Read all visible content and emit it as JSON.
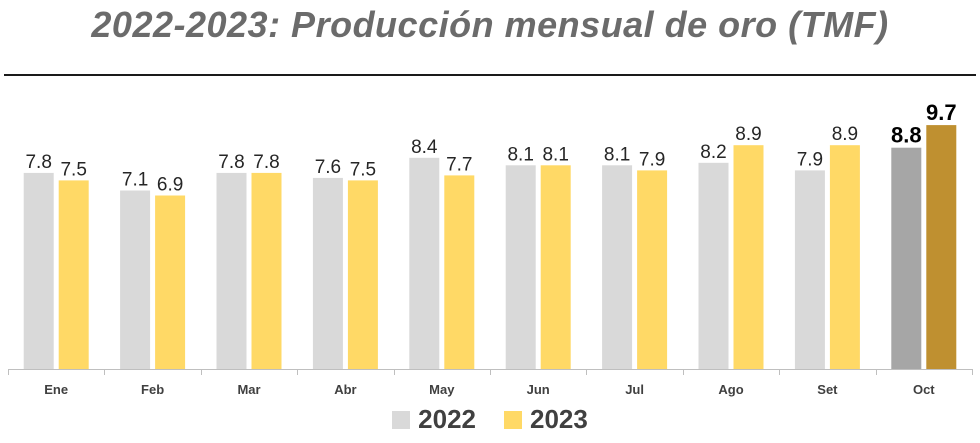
{
  "chart_data": {
    "type": "bar",
    "title": "2022-2023: Producción mensual de oro (TMF)",
    "categories": [
      "Ene",
      "Feb",
      "Mar",
      "Abr",
      "May",
      "Jun",
      "Jul",
      "Ago",
      "Set",
      "Oct"
    ],
    "series": [
      {
        "name": "2022",
        "color": "#d9d9d9",
        "highlight_color": "#a6a6a6",
        "values": [
          7.8,
          7.1,
          7.8,
          7.6,
          8.4,
          8.1,
          8.1,
          8.2,
          7.9,
          8.8
        ],
        "labels": [
          "7.8",
          "7.1",
          "7.8",
          "7.6",
          "8.4",
          "8.1",
          "8.1",
          "8.2",
          "7.9",
          "8.8"
        ]
      },
      {
        "name": "2023",
        "color": "#ffd966",
        "highlight_color": "#bf9030",
        "values": [
          7.5,
          6.9,
          7.8,
          7.5,
          7.7,
          8.1,
          7.9,
          8.9,
          8.9,
          9.7
        ],
        "labels": [
          "7.5",
          "6.9",
          "7.8",
          "7.5",
          "7.7",
          "8.1",
          "7.9",
          "8.9",
          "8.9",
          "9.7"
        ]
      }
    ],
    "highlight_category": "Oct",
    "xlabel": "",
    "ylabel": "",
    "ylim": [
      0,
      10.5
    ],
    "grid": false,
    "legend_position": "bottom"
  }
}
